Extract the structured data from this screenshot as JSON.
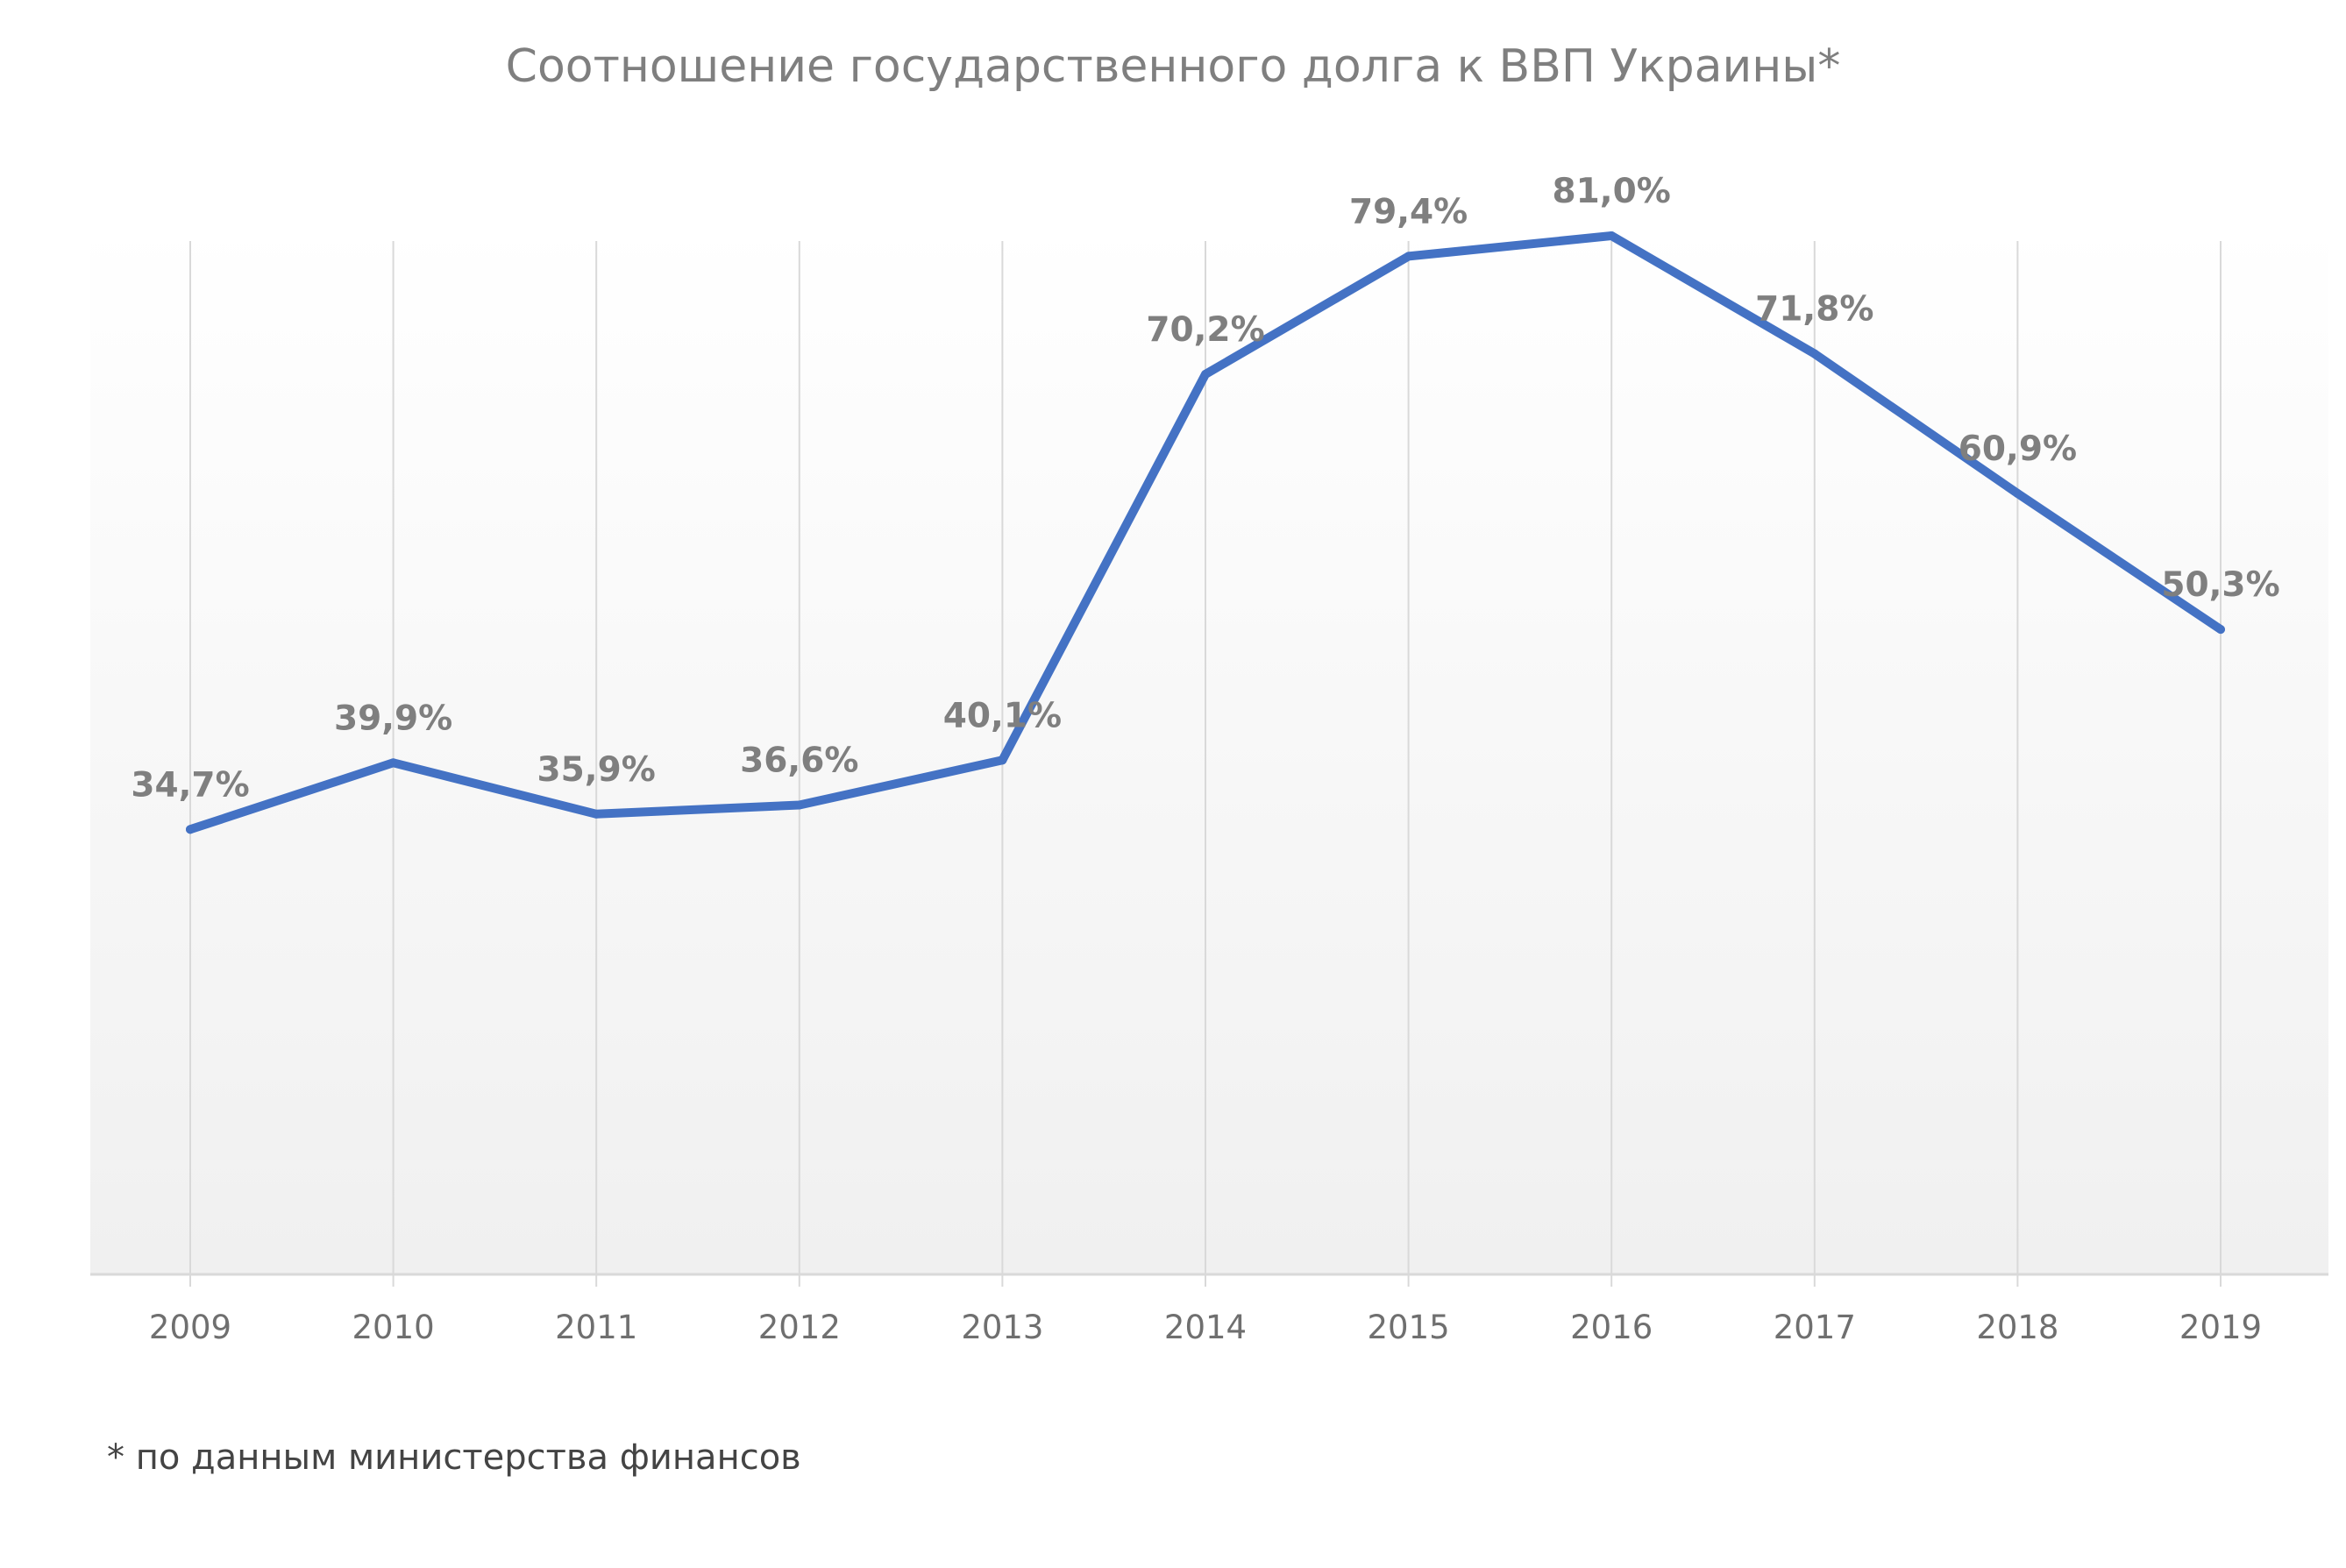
{
  "chart_data": {
    "type": "line",
    "title": "Соотношение государственного долга к ВВП Украины*",
    "xlabel": "",
    "ylabel": "",
    "categories": [
      "2009",
      "2010",
      "2011",
      "2012",
      "2013",
      "2014",
      "2015",
      "2016",
      "2017",
      "2018",
      "2019"
    ],
    "series": [
      {
        "values": [
          34.7,
          39.9,
          35.9,
          36.6,
          40.1,
          70.2,
          79.4,
          81.0,
          71.8,
          60.9,
          50.3
        ],
        "labels": [
          "34,7%",
          "39,9%",
          "35,9%",
          "36,6%",
          "40,1%",
          "70,2%",
          "79,4%",
          "81,0%",
          "71,8%",
          "60,9%",
          "50,3%"
        ]
      }
    ],
    "ylim": [
      0,
      100
    ],
    "grid": "vertical",
    "legend": "none",
    "footnote": "* по данным министерства финансов",
    "colors": {
      "line": "#4472c4",
      "grid": "#d9d9d9",
      "axis": "#d9d9d9",
      "text": "#7f7f7f",
      "plot_bg_top": "#ffffff",
      "plot_bg_bottom": "#f0f0f0"
    }
  }
}
